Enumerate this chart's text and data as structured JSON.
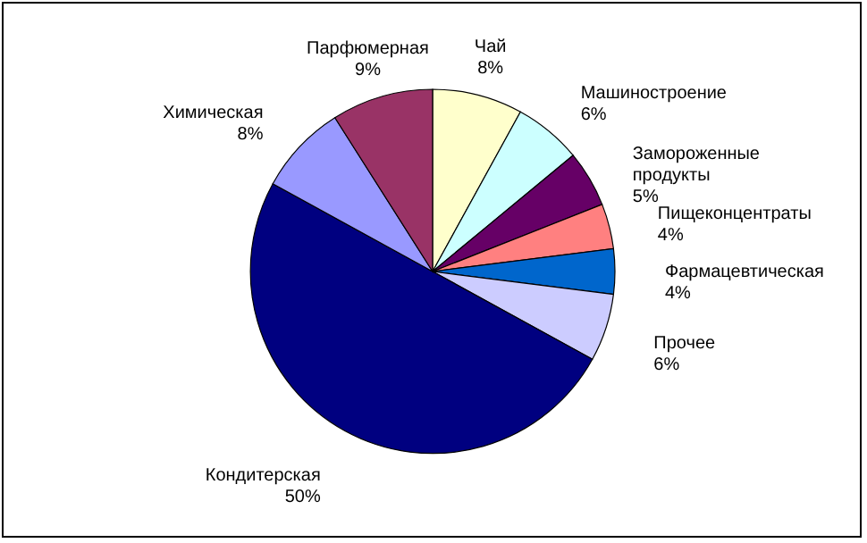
{
  "chart_data": {
    "type": "pie",
    "categories": [
      "Чай",
      "Машиностроение",
      "Замороженные продукты",
      "Пищеконцентраты",
      "Фармацевтическая",
      "Прочее",
      "Кондитерская",
      "Химическая",
      "Парфюмерная"
    ],
    "values": [
      8,
      6,
      5,
      4,
      4,
      6,
      50,
      8,
      9
    ],
    "colors": [
      "#ffffcc",
      "#ccffff",
      "#660066",
      "#ff8080",
      "#0066cc",
      "#ccccff",
      "#000080",
      "#9999ff",
      "#993366"
    ],
    "value_labels": [
      "8%",
      "6%",
      "5%",
      "4%",
      "4%",
      "6%",
      "50%",
      "8%",
      "9%"
    ],
    "legend": false
  }
}
